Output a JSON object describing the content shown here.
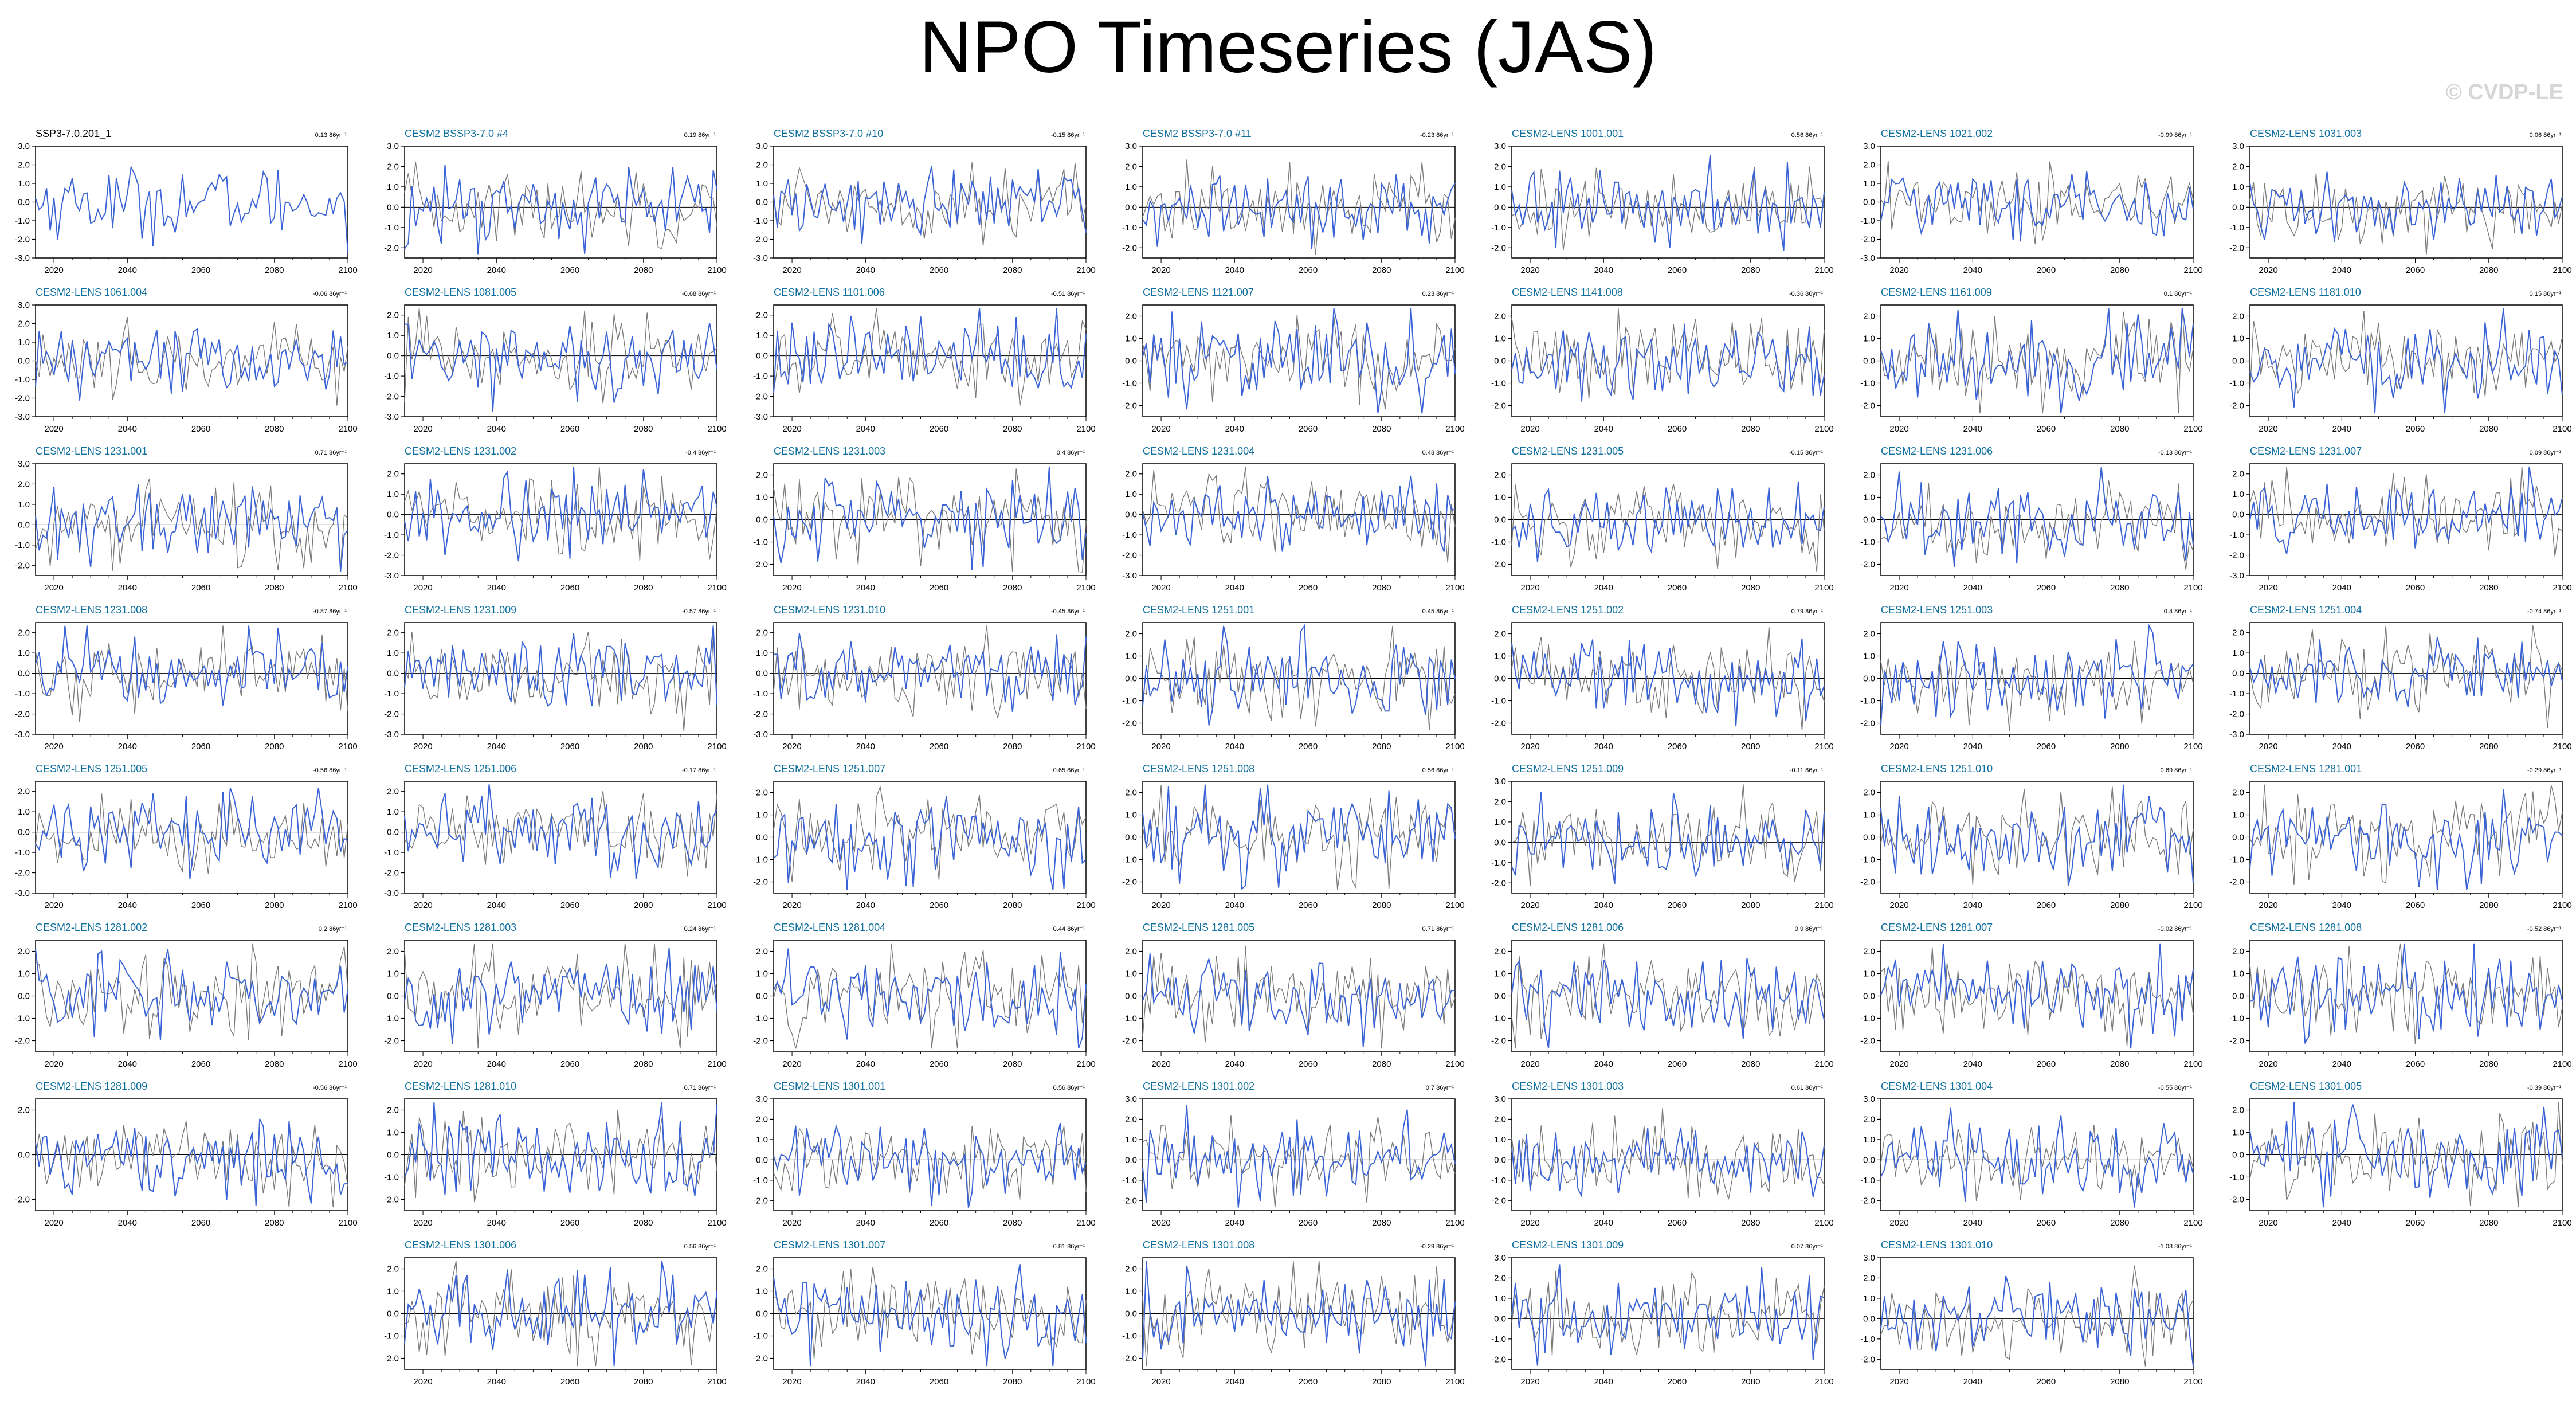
{
  "header": {
    "title": "NPO Timeseries (JAS)",
    "watermark": "© CVDP-LE"
  },
  "colors": {
    "observed": "#000000",
    "ensemble": "#0f6f9e",
    "series_blue": "#3a63d6",
    "series_gray": "#7a7a7a",
    "zero_line": "#000000"
  },
  "chart_data": {
    "type": "line",
    "x_range": [
      2015,
      2100
    ],
    "x_ticks": [
      "2020",
      "2040",
      "2060",
      "2080",
      "2100"
    ],
    "panels": [
      {
        "title": "SSP3-7.0.201_1",
        "trend": "0.13 86yr⁻¹",
        "ylim": [
          -3,
          3
        ],
        "yticks": [
          "3.0",
          "2.0",
          "1.0",
          "0.0",
          "-1.0",
          "-2.0",
          "-3.0"
        ],
        "observed": true
      },
      {
        "title": "CESM2 BSSP3-7.0 #4",
        "trend": "0.19 86yr⁻¹",
        "ylim": [
          -2.5,
          3
        ],
        "yticks": [
          "3.0",
          "2.0",
          "1.0",
          "0.0",
          "-1.0",
          "-2.0"
        ]
      },
      {
        "title": "CESM2 BSSP3-7.0 #10",
        "trend": "-0.15 86yr⁻¹",
        "ylim": [
          -3,
          3
        ],
        "yticks": [
          "3.0",
          "2.0",
          "1.0",
          "0.0",
          "-1.0",
          "-2.0",
          "-3.0"
        ]
      },
      {
        "title": "CESM2 BSSP3-7.0 #11",
        "trend": "-0.23 86yr⁻¹",
        "ylim": [
          -2.5,
          3
        ],
        "yticks": [
          "3.0",
          "2.0",
          "1.0",
          "0.0",
          "-1.0",
          "-2.0"
        ]
      },
      {
        "title": "CESM2-LENS 1001.001",
        "trend": "0.56 86yr⁻¹",
        "ylim": [
          -2.5,
          3
        ],
        "yticks": [
          "3.0",
          "2.0",
          "1.0",
          "0.0",
          "-1.0",
          "-2.0"
        ]
      },
      {
        "title": "CESM2-LENS 1021.002",
        "trend": "-0.99 86yr⁻¹",
        "ylim": [
          -3,
          3
        ],
        "yticks": [
          "3.0",
          "2.0",
          "1.0",
          "0.0",
          "-1.0",
          "-2.0",
          "-3.0"
        ]
      },
      {
        "title": "CESM2-LENS 1031.003",
        "trend": "0.06 86yr⁻¹",
        "ylim": [
          -2.5,
          3
        ],
        "yticks": [
          "3.0",
          "2.0",
          "1.0",
          "0.0",
          "-1.0",
          "-2.0"
        ]
      },
      {
        "title": "CESM2-LENS 1061.004",
        "trend": "-0.06 86yr⁻¹",
        "ylim": [
          -3,
          3
        ],
        "yticks": [
          "3.0",
          "2.0",
          "1.0",
          "0.0",
          "-1.0",
          "-2.0",
          "-3.0"
        ]
      },
      {
        "title": "CESM2-LENS 1081.005",
        "trend": "-0.68 86yr⁻¹",
        "ylim": [
          -3,
          2.5
        ],
        "yticks": [
          "2.0",
          "1.0",
          "0.0",
          "-1.0",
          "-2.0",
          "-3.0"
        ]
      },
      {
        "title": "CESM2-LENS 1101.006",
        "trend": "-0.51 86yr⁻¹",
        "ylim": [
          -3,
          2.5
        ],
        "yticks": [
          "2.0",
          "1.0",
          "0.0",
          "-1.0",
          "-2.0",
          "-3.0"
        ]
      },
      {
        "title": "CESM2-LENS 1121.007",
        "trend": "0.23 86yr⁻¹",
        "ylim": [
          -2.5,
          2.5
        ],
        "yticks": [
          "2.0",
          "1.0",
          "0.0",
          "-1.0",
          "-2.0"
        ]
      },
      {
        "title": "CESM2-LENS 1141.008",
        "trend": "-0.36 86yr⁻¹",
        "ylim": [
          -2.5,
          2.5
        ],
        "yticks": [
          "2.0",
          "1.0",
          "0.0",
          "-1.0",
          "-2.0"
        ]
      },
      {
        "title": "CESM2-LENS 1161.009",
        "trend": "0.1 86yr⁻¹",
        "ylim": [
          -2.5,
          2.5
        ],
        "yticks": [
          "2.0",
          "1.0",
          "0.0",
          "-1.0",
          "-2.0"
        ]
      },
      {
        "title": "CESM2-LENS 1181.010",
        "trend": "0.15 86yr⁻¹",
        "ylim": [
          -2.5,
          2.5
        ],
        "yticks": [
          "2.0",
          "1.0",
          "0.0",
          "-1.0",
          "-2.0"
        ]
      },
      {
        "title": "CESM2-LENS 1231.001",
        "trend": "0.71 86yr⁻¹",
        "ylim": [
          -2.5,
          3
        ],
        "yticks": [
          "3.0",
          "2.0",
          "1.0",
          "0.0",
          "-1.0",
          "-2.0"
        ]
      },
      {
        "title": "CESM2-LENS 1231.002",
        "trend": "-0.4 86yr⁻¹",
        "ylim": [
          -3,
          2.5
        ],
        "yticks": [
          "2.0",
          "1.0",
          "0.0",
          "-1.0",
          "-2.0",
          "-3.0"
        ]
      },
      {
        "title": "CESM2-LENS 1231.003",
        "trend": "0.4 86yr⁻¹",
        "ylim": [
          -2.5,
          2.5
        ],
        "yticks": [
          "2.0",
          "1.0",
          "0.0",
          "-1.0",
          "-2.0"
        ]
      },
      {
        "title": "CESM2-LENS 1231.004",
        "trend": "0.48 86yr⁻¹",
        "ylim": [
          -3,
          2.5
        ],
        "yticks": [
          "2.0",
          "1.0",
          "0.0",
          "-1.0",
          "-2.0",
          "-3.0"
        ]
      },
      {
        "title": "CESM2-LENS 1231.005",
        "trend": "-0.15 86yr⁻¹",
        "ylim": [
          -2.5,
          2.5
        ],
        "yticks": [
          "2.0",
          "1.0",
          "0.0",
          "-1.0",
          "-2.0"
        ]
      },
      {
        "title": "CESM2-LENS 1231.006",
        "trend": "-0.13 86yr⁻¹",
        "ylim": [
          -2.5,
          2.5
        ],
        "yticks": [
          "2.0",
          "1.0",
          "0.0",
          "-1.0",
          "-2.0"
        ]
      },
      {
        "title": "CESM2-LENS 1231.007",
        "trend": "0.09 86yr⁻¹",
        "ylim": [
          -3,
          2.5
        ],
        "yticks": [
          "2.0",
          "1.0",
          "0.0",
          "-1.0",
          "-2.0",
          "-3.0"
        ]
      },
      {
        "title": "CESM2-LENS 1231.008",
        "trend": "-0.87 86yr⁻¹",
        "ylim": [
          -3,
          2.5
        ],
        "yticks": [
          "2.0",
          "1.0",
          "0.0",
          "-1.0",
          "-2.0",
          "-3.0"
        ]
      },
      {
        "title": "CESM2-LENS 1231.009",
        "trend": "-0.57 86yr⁻¹",
        "ylim": [
          -3,
          2.5
        ],
        "yticks": [
          "2.0",
          "1.0",
          "0.0",
          "-1.0",
          "-2.0",
          "-3.0"
        ]
      },
      {
        "title": "CESM2-LENS 1231.010",
        "trend": "-0.45 86yr⁻¹",
        "ylim": [
          -3,
          2.5
        ],
        "yticks": [
          "2.0",
          "1.0",
          "0.0",
          "-1.0",
          "-2.0",
          "-3.0"
        ]
      },
      {
        "title": "CESM2-LENS 1251.001",
        "trend": "0.45 86yr⁻¹",
        "ylim": [
          -2.5,
          2.5
        ],
        "yticks": [
          "2.0",
          "1.0",
          "0.0",
          "-1.0",
          "-2.0"
        ]
      },
      {
        "title": "CESM2-LENS 1251.002",
        "trend": "0.79 86yr⁻¹",
        "ylim": [
          -2.5,
          2.5
        ],
        "yticks": [
          "2.0",
          "1.0",
          "0.0",
          "-1.0",
          "-2.0"
        ]
      },
      {
        "title": "CESM2-LENS 1251.003",
        "trend": "0.4 86yr⁻¹",
        "ylim": [
          -2.5,
          2.5
        ],
        "yticks": [
          "2.0",
          "1.0",
          "0.0",
          "-1.0",
          "-2.0"
        ]
      },
      {
        "title": "CESM2-LENS 1251.004",
        "trend": "-0.74 86yr⁻¹",
        "ylim": [
          -3,
          2.5
        ],
        "yticks": [
          "2.0",
          "1.0",
          "0.0",
          "-1.0",
          "-2.0",
          "-3.0"
        ]
      },
      {
        "title": "CESM2-LENS 1251.005",
        "trend": "-0.56 86yr⁻¹",
        "ylim": [
          -3,
          2.5
        ],
        "yticks": [
          "2.0",
          "1.0",
          "0.0",
          "-1.0",
          "-2.0",
          "-3.0"
        ]
      },
      {
        "title": "CESM2-LENS 1251.006",
        "trend": "-0.17 86yr⁻¹",
        "ylim": [
          -3,
          2.5
        ],
        "yticks": [
          "2.0",
          "1.0",
          "0.0",
          "-1.0",
          "-2.0",
          "-3.0"
        ]
      },
      {
        "title": "CESM2-LENS 1251.007",
        "trend": "0.65 86yr⁻¹",
        "ylim": [
          -2.5,
          2.5
        ],
        "yticks": [
          "2.0",
          "1.0",
          "0.0",
          "-1.0",
          "-2.0"
        ]
      },
      {
        "title": "CESM2-LENS 1251.008",
        "trend": "0.56 86yr⁻¹",
        "ylim": [
          -2.5,
          2.5
        ],
        "yticks": [
          "2.0",
          "1.0",
          "0.0",
          "-1.0",
          "-2.0"
        ]
      },
      {
        "title": "CESM2-LENS 1251.009",
        "trend": "-0.11 86yr⁻¹",
        "ylim": [
          -2.5,
          3
        ],
        "yticks": [
          "3.0",
          "2.0",
          "1.0",
          "0.0",
          "-1.0",
          "-2.0"
        ]
      },
      {
        "title": "CESM2-LENS 1251.010",
        "trend": "0.69 86yr⁻¹",
        "ylim": [
          -2.5,
          2.5
        ],
        "yticks": [
          "2.0",
          "1.0",
          "0.0",
          "-1.0",
          "-2.0"
        ]
      },
      {
        "title": "CESM2-LENS 1281.001",
        "trend": "-0.29 86yr⁻¹",
        "ylim": [
          -2.5,
          2.5
        ],
        "yticks": [
          "2.0",
          "1.0",
          "0.0",
          "-1.0",
          "-2.0"
        ]
      },
      {
        "title": "CESM2-LENS 1281.002",
        "trend": "0.2 86yr⁻¹",
        "ylim": [
          -2.5,
          2.5
        ],
        "yticks": [
          "2.0",
          "1.0",
          "0.0",
          "-1.0",
          "-2.0"
        ]
      },
      {
        "title": "CESM2-LENS 1281.003",
        "trend": "0.24 86yr⁻¹",
        "ylim": [
          -2.5,
          2.5
        ],
        "yticks": [
          "2.0",
          "1.0",
          "0.0",
          "-1.0",
          "-2.0"
        ]
      },
      {
        "title": "CESM2-LENS 1281.004",
        "trend": "0.44 86yr⁻¹",
        "ylim": [
          -2.5,
          2.5
        ],
        "yticks": [
          "2.0",
          "1.0",
          "0.0",
          "-1.0",
          "-2.0"
        ]
      },
      {
        "title": "CESM2-LENS 1281.005",
        "trend": "0.71 86yr⁻¹",
        "ylim": [
          -2.5,
          2.5
        ],
        "yticks": [
          "2.0",
          "1.0",
          "0.0",
          "-1.0",
          "-2.0"
        ]
      },
      {
        "title": "CESM2-LENS 1281.006",
        "trend": "0.9 86yr⁻¹",
        "ylim": [
          -2.5,
          2.5
        ],
        "yticks": [
          "2.0",
          "1.0",
          "0.0",
          "-1.0",
          "-2.0"
        ]
      },
      {
        "title": "CESM2-LENS 1281.007",
        "trend": "-0.02 86yr⁻¹",
        "ylim": [
          -2.5,
          2.5
        ],
        "yticks": [
          "2.0",
          "1.0",
          "0.0",
          "-1.0",
          "-2.0"
        ]
      },
      {
        "title": "CESM2-LENS 1281.008",
        "trend": "-0.52 86yr⁻¹",
        "ylim": [
          -2.5,
          2.5
        ],
        "yticks": [
          "2.0",
          "1.0",
          "0.0",
          "-1.0",
          "-2.0"
        ]
      },
      {
        "title": "CESM2-LENS 1281.009",
        "trend": "-0.56 86yr⁻¹",
        "ylim": [
          -2.5,
          2.5
        ],
        "yticks": [
          "2.0",
          "0.0",
          "-2.0"
        ]
      },
      {
        "title": "CESM2-LENS 1281.010",
        "trend": "0.71 86yr⁻¹",
        "ylim": [
          -2.5,
          2.5
        ],
        "yticks": [
          "2.0",
          "1.0",
          "0.0",
          "-1.0",
          "-2.0"
        ]
      },
      {
        "title": "CESM2-LENS 1301.001",
        "trend": "0.56 86yr⁻¹",
        "ylim": [
          -2.5,
          3
        ],
        "yticks": [
          "3.0",
          "2.0",
          "1.0",
          "0.0",
          "-1.0",
          "-2.0"
        ]
      },
      {
        "title": "CESM2-LENS 1301.002",
        "trend": "0.7 86yr⁻¹",
        "ylim": [
          -2.5,
          3
        ],
        "yticks": [
          "3.0",
          "2.0",
          "1.0",
          "0.0",
          "-1.0",
          "-2.0"
        ]
      },
      {
        "title": "CESM2-LENS 1301.003",
        "trend": "0.61 86yr⁻¹",
        "ylim": [
          -2.5,
          3
        ],
        "yticks": [
          "3.0",
          "2.0",
          "1.0",
          "0.0",
          "-1.0",
          "-2.0"
        ]
      },
      {
        "title": "CESM2-LENS 1301.004",
        "trend": "-0.55 86yr⁻¹",
        "ylim": [
          -2.5,
          3
        ],
        "yticks": [
          "3.0",
          "2.0",
          "1.0",
          "0.0",
          "-1.0",
          "-2.0"
        ]
      },
      {
        "title": "CESM2-LENS 1301.005",
        "trend": "-0.39 86yr⁻¹",
        "ylim": [
          -2.5,
          2.5
        ],
        "yticks": [
          "2.0",
          "1.0",
          "0.0",
          "-1.0",
          "-2.0"
        ]
      },
      {
        "title": "CESM2-LENS 1301.006",
        "trend": "0.56 86yr⁻¹",
        "ylim": [
          -2.5,
          2.5
        ],
        "yticks": [
          "2.0",
          "1.0",
          "0.0",
          "-1.0",
          "-2.0"
        ]
      },
      {
        "title": "CESM2-LENS 1301.007",
        "trend": "0.81 86yr⁻¹",
        "ylim": [
          -2.5,
          2.5
        ],
        "yticks": [
          "2.0",
          "1.0",
          "0.0",
          "-1.0",
          "-2.0"
        ]
      },
      {
        "title": "CESM2-LENS 1301.008",
        "trend": "-0.29 86yr⁻¹",
        "ylim": [
          -2.5,
          2.5
        ],
        "yticks": [
          "2.0",
          "1.0",
          "0.0",
          "-1.0",
          "-2.0"
        ]
      },
      {
        "title": "CESM2-LENS 1301.009",
        "trend": "0.07 86yr⁻¹",
        "ylim": [
          -2.5,
          3
        ],
        "yticks": [
          "3.0",
          "2.0",
          "1.0",
          "0.0",
          "-1.0",
          "-2.0"
        ]
      },
      {
        "title": "CESM2-LENS 1301.010",
        "trend": "-1.03 86yr⁻¹",
        "ylim": [
          -2.5,
          3
        ],
        "yticks": [
          "3.0",
          "2.0",
          "1.0",
          "0.0",
          "-1.0",
          "-2.0"
        ]
      }
    ]
  }
}
